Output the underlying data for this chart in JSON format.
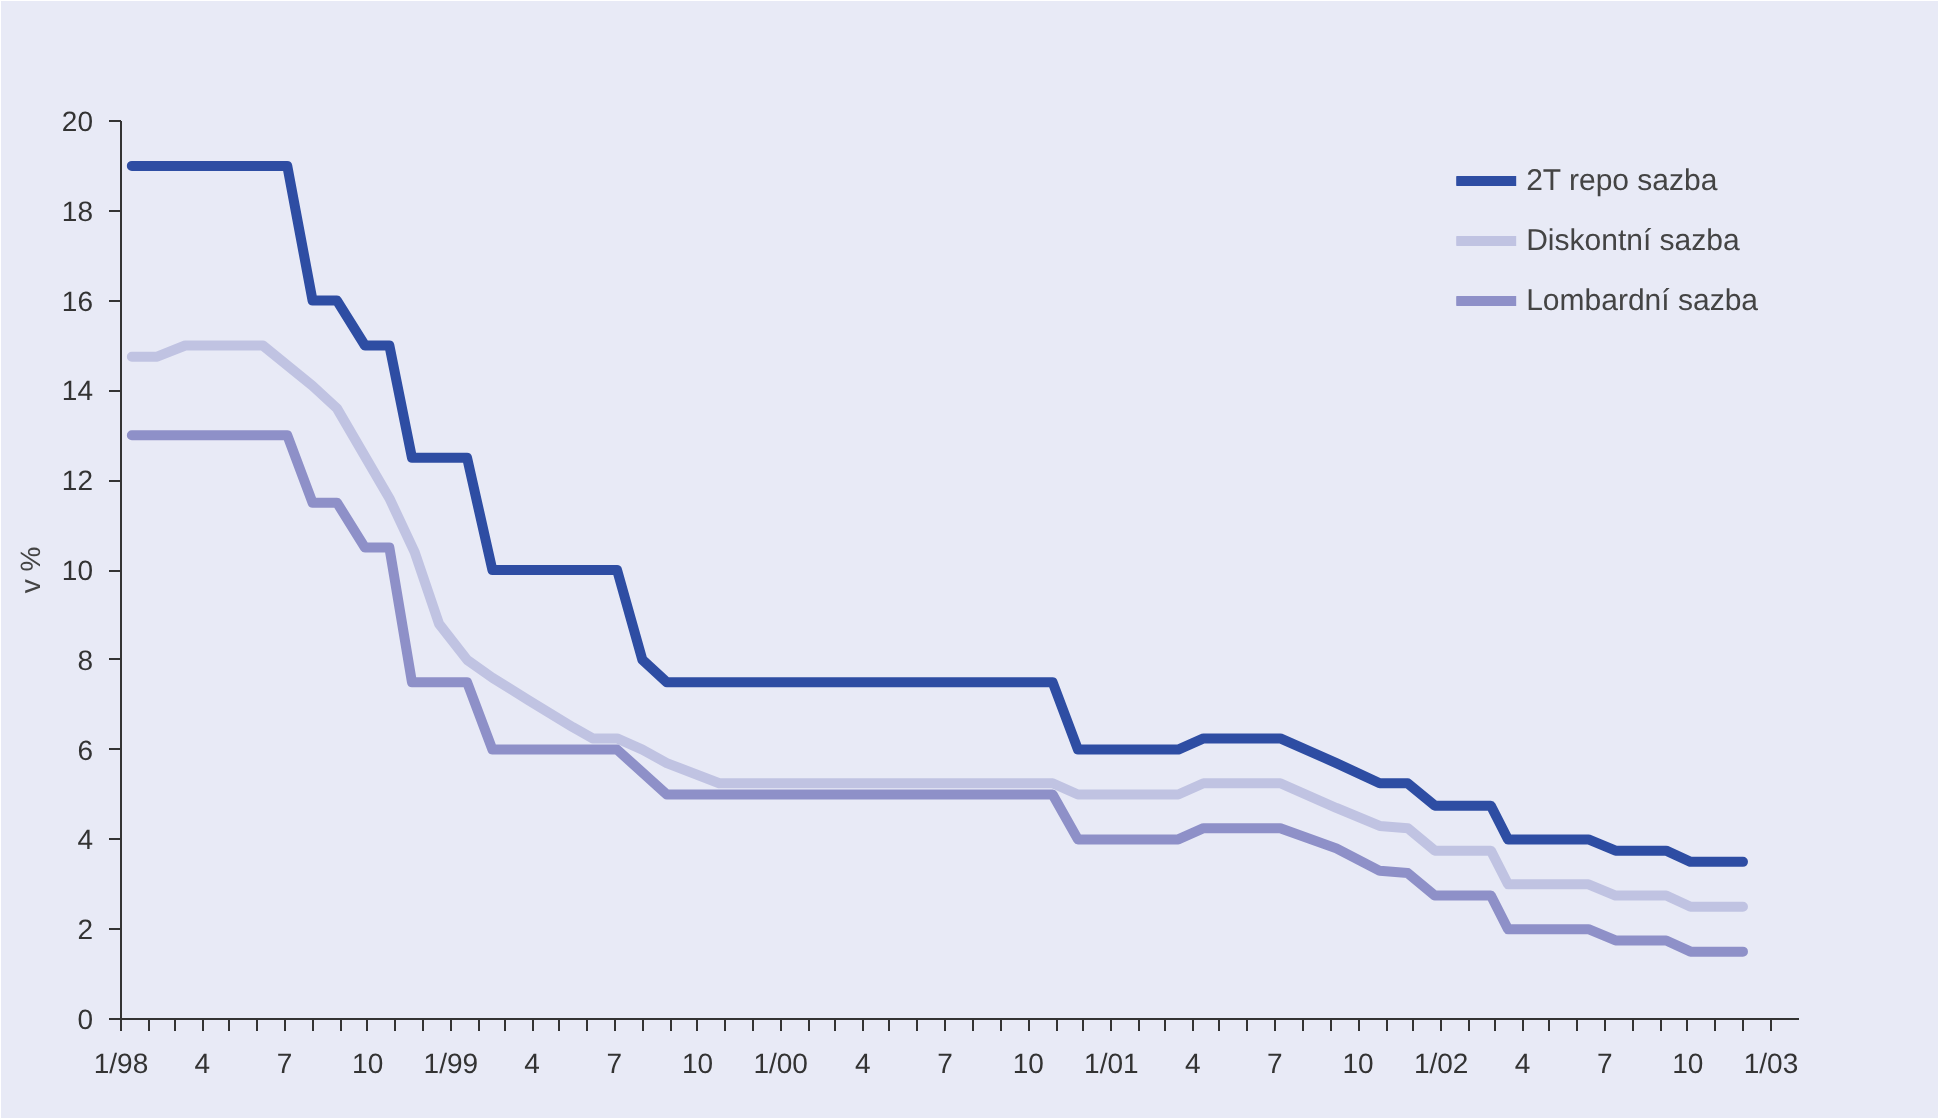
{
  "chart_data": {
    "type": "line",
    "ylabel": "v %",
    "xlim": [
      "1998-01",
      "2003-02"
    ],
    "ylim": [
      0,
      20
    ],
    "yticks": [
      0,
      2,
      4,
      6,
      8,
      10,
      12,
      14,
      16,
      18,
      20
    ],
    "xticks": [
      {
        "value": "1998-01",
        "label": "1/98"
      },
      {
        "value": "1998-02",
        "label": null
      },
      {
        "value": "1998-03",
        "label": null
      },
      {
        "value": "1998-04",
        "label": "4"
      },
      {
        "value": "1998-05",
        "label": null
      },
      {
        "value": "1998-06",
        "label": null
      },
      {
        "value": "1998-07",
        "label": "7"
      },
      {
        "value": "1998-08",
        "label": null
      },
      {
        "value": "1998-09",
        "label": null
      },
      {
        "value": "1998-10",
        "label": "10"
      },
      {
        "value": "1998-11",
        "label": null
      },
      {
        "value": "1998-12",
        "label": null
      },
      {
        "value": "1999-01",
        "label": "1/99"
      },
      {
        "value": "1999-02",
        "label": null
      },
      {
        "value": "1999-03",
        "label": null
      },
      {
        "value": "1999-04",
        "label": "4"
      },
      {
        "value": "1999-05",
        "label": null
      },
      {
        "value": "1999-06",
        "label": null
      },
      {
        "value": "1999-07",
        "label": "7"
      },
      {
        "value": "1999-08",
        "label": null
      },
      {
        "value": "1999-09",
        "label": null
      },
      {
        "value": "1999-10",
        "label": "10"
      },
      {
        "value": "1999-11",
        "label": null
      },
      {
        "value": "1999-12",
        "label": null
      },
      {
        "value": "2000-01",
        "label": "1/00"
      },
      {
        "value": "2000-02",
        "label": null
      },
      {
        "value": "2000-03",
        "label": null
      },
      {
        "value": "2000-04",
        "label": "4"
      },
      {
        "value": "2000-05",
        "label": null
      },
      {
        "value": "2000-06",
        "label": null
      },
      {
        "value": "2000-07",
        "label": "7"
      },
      {
        "value": "2000-08",
        "label": null
      },
      {
        "value": "2000-09",
        "label": null
      },
      {
        "value": "2000-10",
        "label": "10"
      },
      {
        "value": "2000-11",
        "label": null
      },
      {
        "value": "2000-12",
        "label": null
      },
      {
        "value": "2001-01",
        "label": "1/01"
      },
      {
        "value": "2001-02",
        "label": null
      },
      {
        "value": "2001-03",
        "label": null
      },
      {
        "value": "2001-04",
        "label": "4"
      },
      {
        "value": "2001-05",
        "label": null
      },
      {
        "value": "2001-06",
        "label": null
      },
      {
        "value": "2001-07",
        "label": "7"
      },
      {
        "value": "2001-08",
        "label": null
      },
      {
        "value": "2001-09",
        "label": null
      },
      {
        "value": "2001-10",
        "label": "10"
      },
      {
        "value": "2001-11",
        "label": null
      },
      {
        "value": "2001-12",
        "label": null
      },
      {
        "value": "2002-01",
        "label": "1/02"
      },
      {
        "value": "2002-02",
        "label": null
      },
      {
        "value": "2002-03",
        "label": null
      },
      {
        "value": "2002-04",
        "label": "4"
      },
      {
        "value": "2002-05",
        "label": null
      },
      {
        "value": "2002-06",
        "label": null
      },
      {
        "value": "2002-07",
        "label": "7"
      },
      {
        "value": "2002-08",
        "label": null
      },
      {
        "value": "2002-09",
        "label": null
      },
      {
        "value": "2002-10",
        "label": "10"
      },
      {
        "value": "2002-11",
        "label": null
      },
      {
        "value": "2002-12",
        "label": null
      },
      {
        "value": "2003-01",
        "label": "1/03"
      }
    ],
    "grid": false,
    "legend": "top right",
    "marker": "none",
    "line_style": "solid",
    "series": [
      {
        "name": "2T repo sazba",
        "color": "#2e4da3",
        "x": [
          "1998-01-13",
          "1998-07-04",
          "1998-08-01",
          "1998-08-28",
          "1998-09-28",
          "1998-10-25",
          "1998-11-19",
          "1999-01-19",
          "1999-02-16",
          "1999-07-04",
          "1999-08-01",
          "1999-08-28",
          "2000-10-28",
          "2000-11-25",
          "2001-03-16",
          "2001-04-13",
          "2001-07-07",
          "2001-09-07",
          "2001-10-25",
          "2001-11-25",
          "2001-12-25",
          "2002-02-25",
          "2002-03-16",
          "2002-06-13",
          "2002-07-13",
          "2002-09-07",
          "2002-10-04",
          "2002-12-01"
        ],
        "values": [
          19,
          19,
          16,
          16,
          15,
          15,
          12.5,
          12.5,
          10,
          10,
          8,
          7.5,
          7.5,
          6,
          6,
          6.25,
          6.25,
          5.7,
          5.25,
          5.25,
          4.75,
          4.75,
          4,
          4,
          3.75,
          3.75,
          3.5,
          3.5
        ]
      },
      {
        "name": "Diskontní sazba",
        "color": "#c0c3e2",
        "x": [
          "1998-01-13",
          "1998-02-10",
          "1998-03-13",
          "1998-06-07",
          "1998-08-01",
          "1998-08-28",
          "1998-10-25",
          "1998-11-22",
          "1998-12-19",
          "1999-01-19",
          "1999-02-16",
          "1999-03-28",
          "1999-05-16",
          "1999-06-07",
          "1999-07-04",
          "1999-08-01",
          "1999-08-28",
          "1999-10-25",
          "2000-10-28",
          "2000-11-25",
          "2001-03-16",
          "2001-04-13",
          "2001-07-07",
          "2001-09-07",
          "2001-10-25",
          "2001-11-25",
          "2001-12-25",
          "2002-02-25",
          "2002-03-16",
          "2002-06-13",
          "2002-07-13",
          "2002-09-07",
          "2002-10-04",
          "2002-12-01"
        ],
        "values": [
          14.75,
          14.75,
          15,
          15,
          14.1,
          13.6,
          11.6,
          10.4,
          8.8,
          8,
          7.6,
          7.1,
          6.5,
          6.25,
          6.25,
          6,
          5.7,
          5.25,
          5.25,
          5,
          5,
          5.25,
          5.25,
          4.7,
          4.3,
          4.25,
          3.75,
          3.75,
          3,
          3,
          2.75,
          2.75,
          2.5,
          2.5
        ]
      },
      {
        "name": "Lombardní sazba",
        "color": "#8e90c8",
        "x": [
          "1998-01-13",
          "1998-07-04",
          "1998-08-01",
          "1998-08-28",
          "1998-09-28",
          "1998-10-25",
          "1998-11-19",
          "1999-01-19",
          "1999-02-16",
          "1999-07-04",
          "1999-08-28",
          "2000-10-28",
          "2000-11-25",
          "2001-03-16",
          "2001-04-13",
          "2001-07-07",
          "2001-09-07",
          "2001-10-25",
          "2001-11-25",
          "2001-12-25",
          "2002-02-25",
          "2002-03-16",
          "2002-06-13",
          "2002-07-13",
          "2002-09-07",
          "2002-10-04",
          "2002-12-01"
        ],
        "values": [
          13,
          13,
          11.5,
          11.5,
          10.5,
          10.5,
          7.5,
          7.5,
          6,
          6,
          5,
          5,
          4,
          4,
          4.25,
          4.25,
          3.8,
          3.3,
          3.25,
          2.75,
          2.75,
          2,
          2,
          1.75,
          1.75,
          1.5,
          1.5
        ]
      }
    ]
  }
}
